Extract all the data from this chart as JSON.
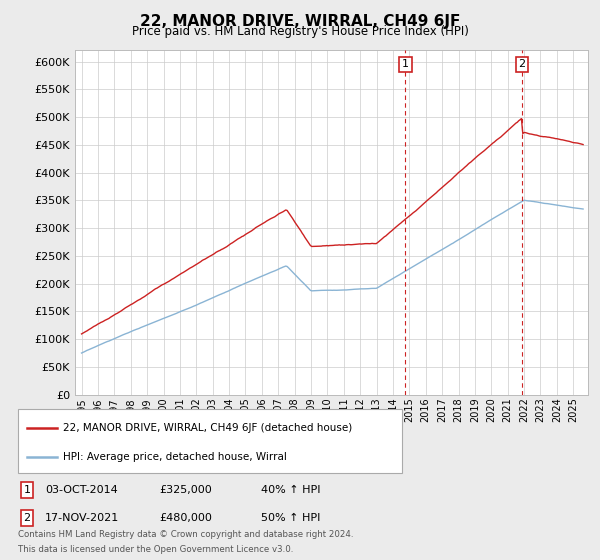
{
  "title": "22, MANOR DRIVE, WIRRAL, CH49 6JF",
  "subtitle": "Price paid vs. HM Land Registry's House Price Index (HPI)",
  "ylim": [
    0,
    620000
  ],
  "yticks": [
    0,
    50000,
    100000,
    150000,
    200000,
    250000,
    300000,
    350000,
    400000,
    450000,
    500000,
    550000,
    600000
  ],
  "ytick_labels": [
    "£0",
    "£50K",
    "£100K",
    "£150K",
    "£200K",
    "£250K",
    "£300K",
    "£350K",
    "£400K",
    "£450K",
    "£500K",
    "£550K",
    "£600K"
  ],
  "hpi_color": "#8ab4d4",
  "price_color": "#cc2222",
  "sale1_date_x": 2014.75,
  "sale1_price": 325000,
  "sale1_label": "1",
  "sale2_date_x": 2021.88,
  "sale2_price": 480000,
  "sale2_label": "2",
  "legend_line1": "22, MANOR DRIVE, WIRRAL, CH49 6JF (detached house)",
  "legend_line2": "HPI: Average price, detached house, Wirral",
  "sale1_col1": "03-OCT-2014",
  "sale1_col2": "£325,000",
  "sale1_col3": "40% ↑ HPI",
  "sale2_col1": "17-NOV-2021",
  "sale2_col2": "£480,000",
  "sale2_col3": "50% ↑ HPI",
  "footnote1": "Contains HM Land Registry data © Crown copyright and database right 2024.",
  "footnote2": "This data is licensed under the Open Government Licence v3.0.",
  "bg_color": "#ebebeb",
  "plot_bg": "#ffffff",
  "grid_color": "#cccccc",
  "xlim_left": 1994.6,
  "xlim_right": 2025.9
}
